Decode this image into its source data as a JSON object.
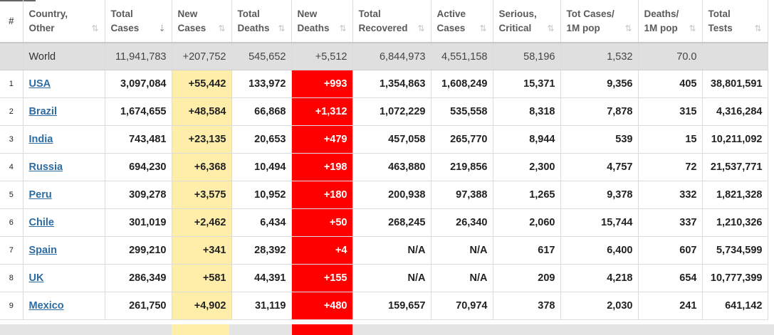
{
  "headers": [
    {
      "line1": "#",
      "line2": "",
      "sort": ""
    },
    {
      "line1": "Country,",
      "line2": "Other",
      "sort": "⇅"
    },
    {
      "line1": "Total",
      "line2": "Cases",
      "sort": "⇣"
    },
    {
      "line1": "New",
      "line2": "Cases",
      "sort": "⇅"
    },
    {
      "line1": "Total",
      "line2": "Deaths",
      "sort": "⇅"
    },
    {
      "line1": "New",
      "line2": "Deaths",
      "sort": "⇅"
    },
    {
      "line1": "Total",
      "line2": "Recovered",
      "sort": "⇅"
    },
    {
      "line1": "Active",
      "line2": "Cases",
      "sort": "⇅"
    },
    {
      "line1": "Serious,",
      "line2": "Critical",
      "sort": "⇅"
    },
    {
      "line1": "Tot Cases/",
      "line2": "1M pop",
      "sort": "⇅"
    },
    {
      "line1": "Deaths/",
      "line2": "1M pop",
      "sort": "⇅"
    },
    {
      "line1": "Total",
      "line2": "Tests",
      "sort": "⇅"
    }
  ],
  "world": {
    "name": "World",
    "total_cases": "11,941,783",
    "new_cases": "+207,752",
    "total_deaths": "545,652",
    "new_deaths": "+5,512",
    "total_recovered": "6,844,973",
    "active_cases": "4,551,158",
    "serious_critical": "58,196",
    "cases_per_1m": "1,532",
    "deaths_per_1m": "70.0",
    "total_tests": ""
  },
  "rows": [
    {
      "rank": "1",
      "country": "USA",
      "total_cases": "3,097,084",
      "new_cases": "+55,442",
      "total_deaths": "133,972",
      "new_deaths": "+993",
      "total_recovered": "1,354,863",
      "active_cases": "1,608,249",
      "serious_critical": "15,371",
      "cases_per_1m": "9,356",
      "deaths_per_1m": "405",
      "total_tests": "38,801,591"
    },
    {
      "rank": "2",
      "country": "Brazil",
      "total_cases": "1,674,655",
      "new_cases": "+48,584",
      "total_deaths": "66,868",
      "new_deaths": "+1,312",
      "total_recovered": "1,072,229",
      "active_cases": "535,558",
      "serious_critical": "8,318",
      "cases_per_1m": "7,878",
      "deaths_per_1m": "315",
      "total_tests": "4,316,284"
    },
    {
      "rank": "3",
      "country": "India",
      "total_cases": "743,481",
      "new_cases": "+23,135",
      "total_deaths": "20,653",
      "new_deaths": "+479",
      "total_recovered": "457,058",
      "active_cases": "265,770",
      "serious_critical": "8,944",
      "cases_per_1m": "539",
      "deaths_per_1m": "15",
      "total_tests": "10,211,092"
    },
    {
      "rank": "4",
      "country": "Russia",
      "total_cases": "694,230",
      "new_cases": "+6,368",
      "total_deaths": "10,494",
      "new_deaths": "+198",
      "total_recovered": "463,880",
      "active_cases": "219,856",
      "serious_critical": "2,300",
      "cases_per_1m": "4,757",
      "deaths_per_1m": "72",
      "total_tests": "21,537,771"
    },
    {
      "rank": "5",
      "country": "Peru",
      "total_cases": "309,278",
      "new_cases": "+3,575",
      "total_deaths": "10,952",
      "new_deaths": "+180",
      "total_recovered": "200,938",
      "active_cases": "97,388",
      "serious_critical": "1,265",
      "cases_per_1m": "9,378",
      "deaths_per_1m": "332",
      "total_tests": "1,821,328"
    },
    {
      "rank": "6",
      "country": "Chile",
      "total_cases": "301,019",
      "new_cases": "+2,462",
      "total_deaths": "6,434",
      "new_deaths": "+50",
      "total_recovered": "268,245",
      "active_cases": "26,340",
      "serious_critical": "2,060",
      "cases_per_1m": "15,744",
      "deaths_per_1m": "337",
      "total_tests": "1,210,326"
    },
    {
      "rank": "7",
      "country": "Spain",
      "total_cases": "299,210",
      "new_cases": "+341",
      "total_deaths": "28,392",
      "new_deaths": "+4",
      "total_recovered": "N/A",
      "active_cases": "N/A",
      "serious_critical": "617",
      "cases_per_1m": "6,400",
      "deaths_per_1m": "607",
      "total_tests": "5,734,599"
    },
    {
      "rank": "8",
      "country": "UK",
      "total_cases": "286,349",
      "new_cases": "+581",
      "total_deaths": "44,391",
      "new_deaths": "+155",
      "total_recovered": "N/A",
      "active_cases": "N/A",
      "serious_critical": "209",
      "cases_per_1m": "4,218",
      "deaths_per_1m": "654",
      "total_tests": "10,777,399"
    },
    {
      "rank": "9",
      "country": "Mexico",
      "total_cases": "261,750",
      "new_cases": "+4,902",
      "total_deaths": "31,119",
      "new_deaths": "+480",
      "total_recovered": "159,657",
      "active_cases": "70,974",
      "serious_critical": "378",
      "cases_per_1m": "2,030",
      "deaths_per_1m": "241",
      "total_tests": "641,142"
    }
  ],
  "colors": {
    "new_cases_bg": "#ffeeaa",
    "new_deaths_bg": "#ff0000",
    "world_row_bg": "#dfdfdf",
    "link": "#2d6ca2"
  }
}
